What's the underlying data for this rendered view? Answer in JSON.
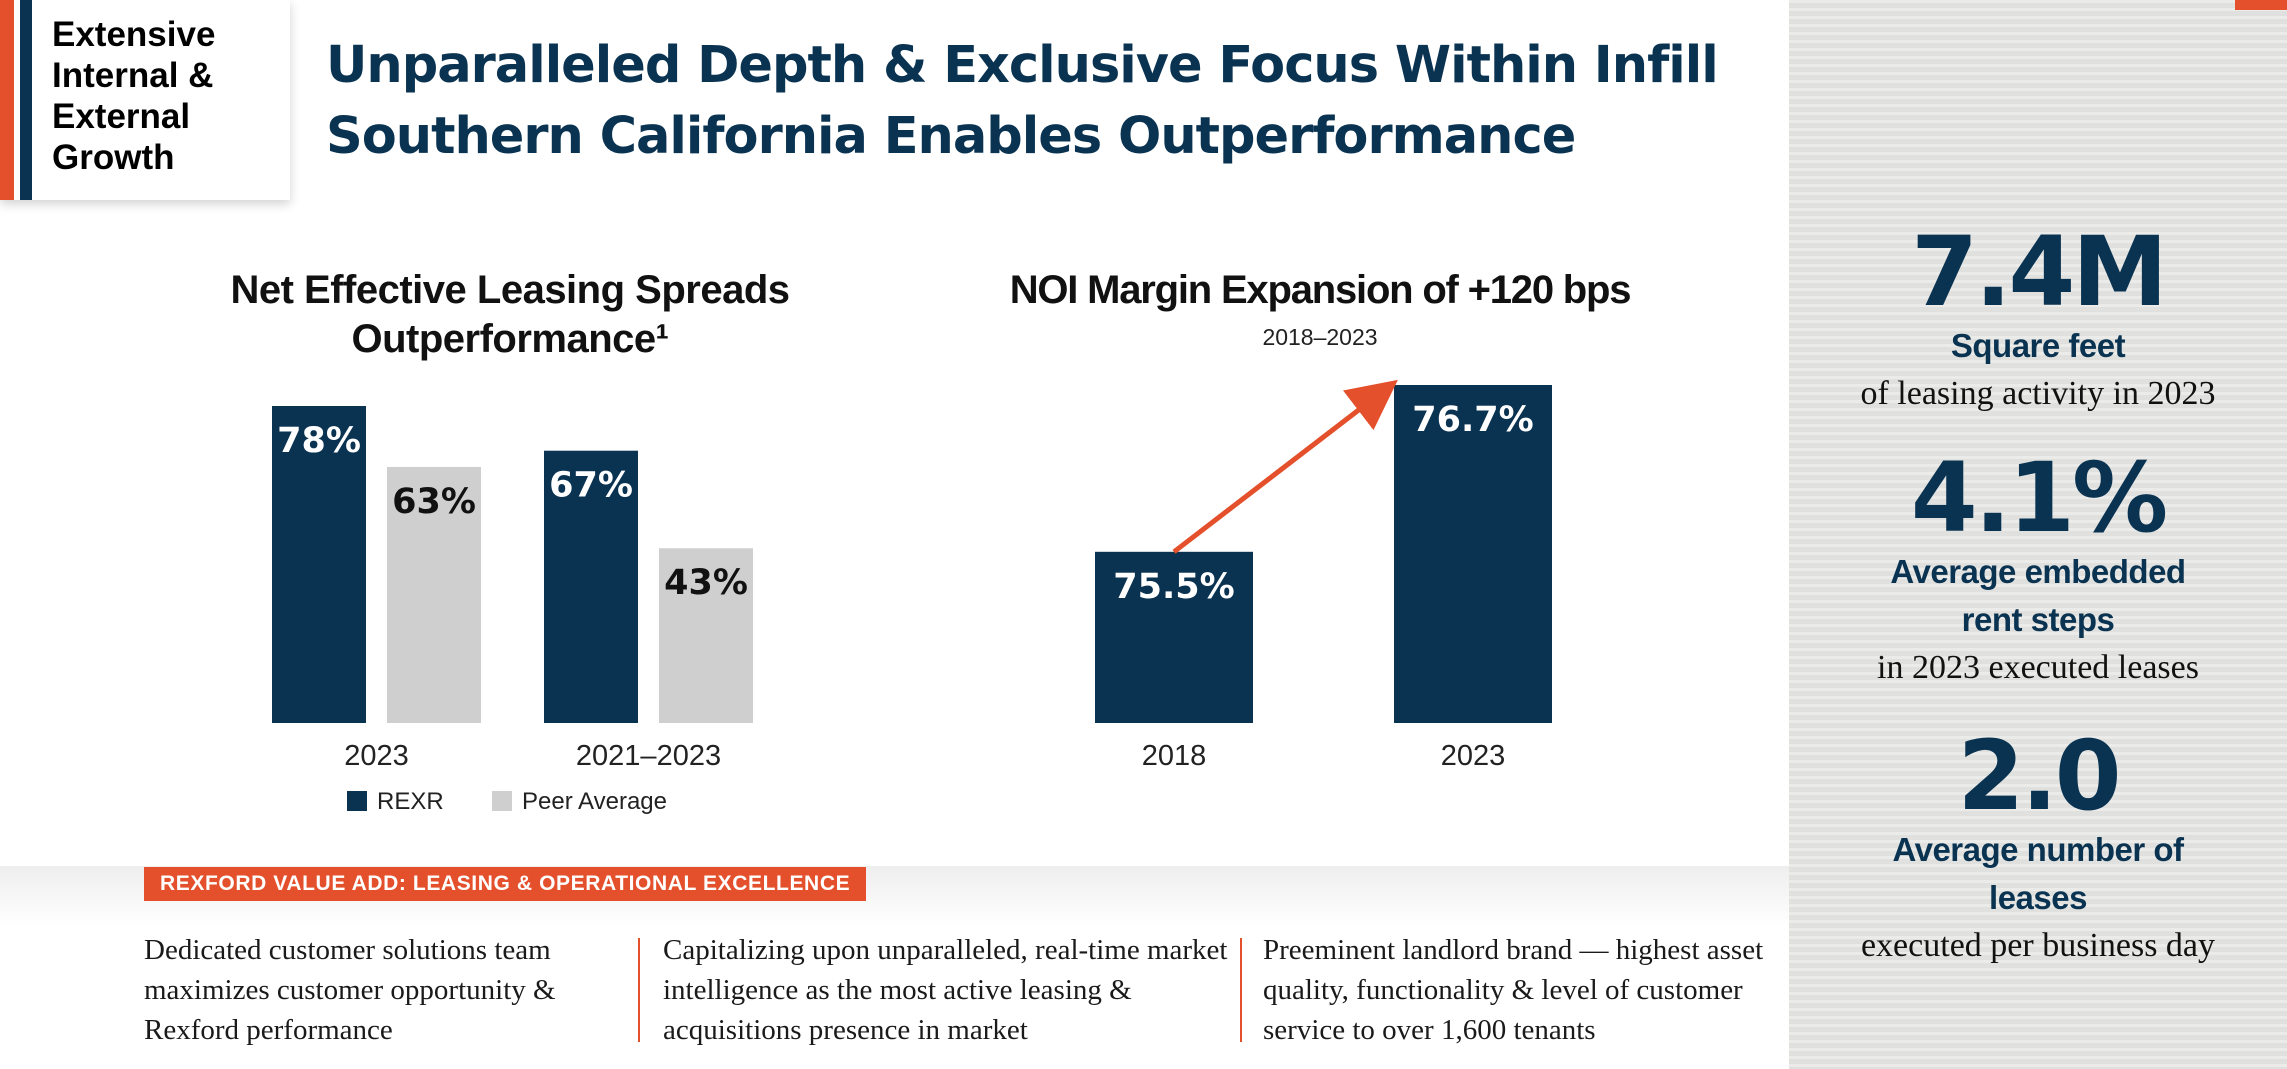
{
  "section": {
    "label": "Extensive Internal & External Growth"
  },
  "headline": "Unparalleled Depth & Exclusive Focus Within Infill Southern California Enables Outperformance",
  "colors": {
    "navy": "#0a3352",
    "gray": "#cfcfcf",
    "orange": "#e4502b"
  },
  "chart_data": [
    {
      "type": "bar",
      "title": "Net Effective Leasing Spreads Outperformance¹",
      "categories": [
        "2023",
        "2021–2023"
      ],
      "series": [
        {
          "name": "REXR",
          "values": [
            78,
            67
          ],
          "labels": [
            "78%",
            "67%"
          ]
        },
        {
          "name": "Peer Average",
          "values": [
            63,
            43
          ],
          "labels": [
            "63%",
            "43%"
          ]
        }
      ],
      "ylim": [
        0,
        78
      ],
      "legend": "bottom",
      "grid": false
    },
    {
      "type": "bar",
      "title": "NOI Margin Expansion of +120 bps",
      "subtitle": "2018–2023",
      "categories": [
        "2018",
        "2023"
      ],
      "values": [
        75.5,
        76.7
      ],
      "labels": [
        "75.5%",
        "76.7%"
      ],
      "annotation": "arrow from 2018 bar to 2023 bar",
      "grid": false
    }
  ],
  "sidebar": {
    "stats": [
      {
        "value": "7.4M",
        "label": "Square feet",
        "sub": "of leasing activity in 2023"
      },
      {
        "value": "4.1%",
        "label": "Average embedded rent steps",
        "sub": "in 2023 executed leases"
      },
      {
        "value": "2.0",
        "label": "Average number of leases",
        "sub": "executed per business day"
      }
    ]
  },
  "bottom": {
    "badge": "REXFORD VALUE ADD: LEASING & OPERATIONAL EXCELLENCE",
    "columns": [
      "Dedicated customer solutions team maximizes customer opportunity & Rexford performance",
      "Capitalizing upon unparalleled, real-time market intelligence as the most active leasing & acquisitions presence in market",
      "Preeminent landlord brand — highest asset quality, functionality & level of customer service to over 1,600 tenants"
    ]
  }
}
